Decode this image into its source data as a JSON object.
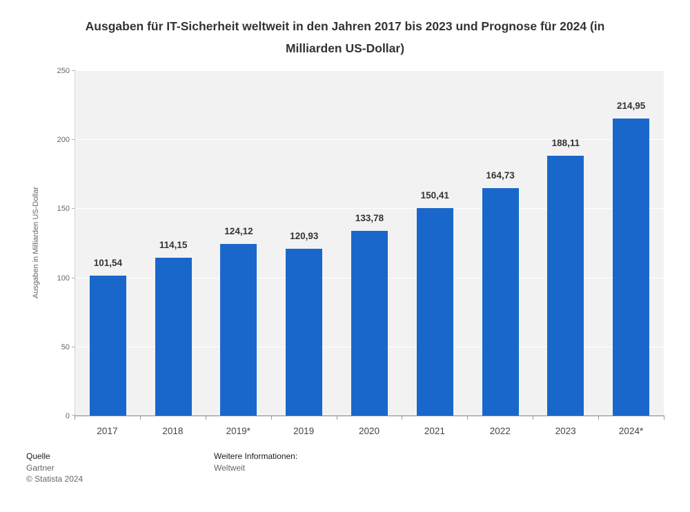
{
  "title": "Ausgaben für IT-Sicherheit weltweit in den Jahren 2017 bis 2023 und Prognose für 2024 (in Milliarden US-Dollar)",
  "chart_data": {
    "type": "bar",
    "categories": [
      "2017",
      "2018",
      "2019*",
      "2019",
      "2020",
      "2021",
      "2022",
      "2023",
      "2024*"
    ],
    "values": [
      101.54,
      114.15,
      124.12,
      120.93,
      133.78,
      150.41,
      164.73,
      188.11,
      214.95
    ],
    "value_labels": [
      "101,54",
      "114,15",
      "124,12",
      "120,93",
      "133,78",
      "150,41",
      "164,73",
      "188,11",
      "214,95"
    ],
    "title": "Ausgaben für IT-Sicherheit weltweit in den Jahren 2017 bis 2023 und Prognose für 2024 (in Milliarden US-Dollar)",
    "xlabel": "",
    "ylabel": "Ausgaben in Milliarden US-Dollar",
    "ylim": [
      0,
      250
    ],
    "yticks": [
      0,
      50,
      100,
      150,
      200,
      250
    ],
    "bar_color": "#1a67cb",
    "plot_background": "#f2f2f2",
    "grid": true,
    "legend": "none"
  },
  "footer": {
    "source_label": "Quelle",
    "source": "Gartner",
    "copyright": "© Statista 2024",
    "info_label": "Weitere Informationen:",
    "info": "Weltweit"
  }
}
